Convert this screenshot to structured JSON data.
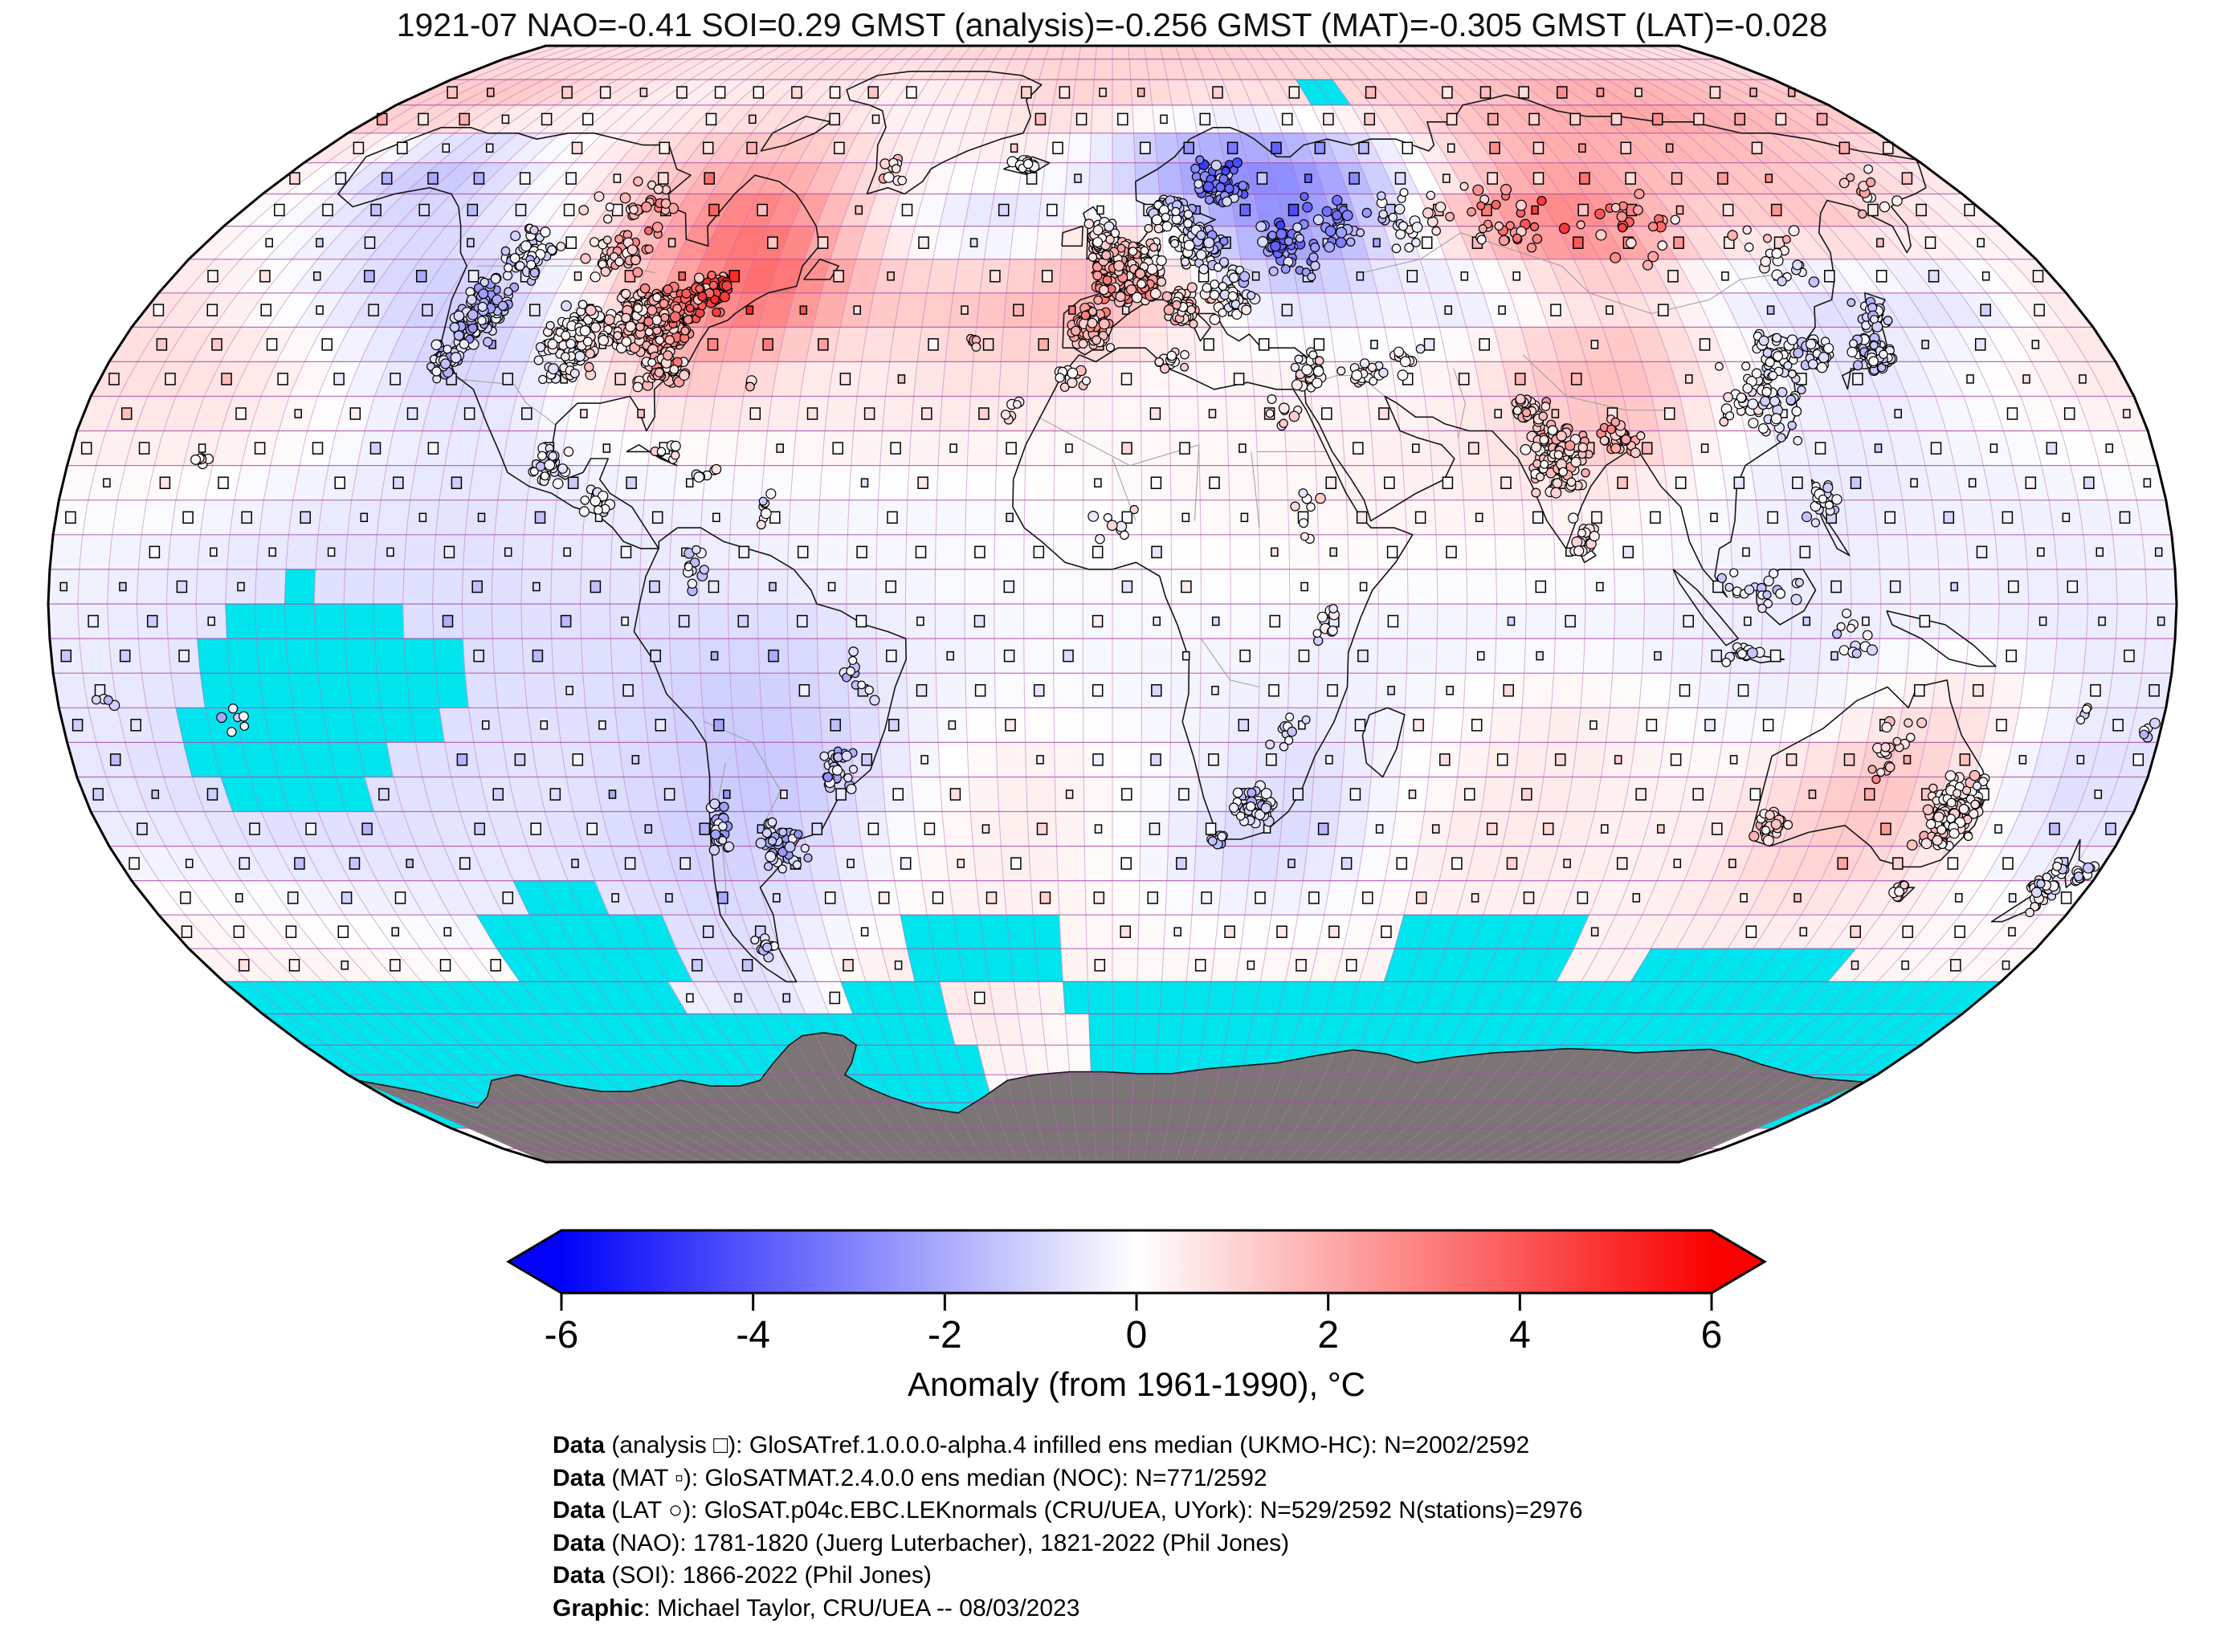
{
  "title": "1921-07 NAO=-0.41 SOI=0.29 GMST (analysis)=-0.256 GMST (MAT)=-0.305 GMST (LAT)=-0.028",
  "header_values": {
    "period": "1921-07",
    "NAO": -0.41,
    "SOI": 0.29,
    "GMST_analysis": -0.256,
    "GMST_MAT": -0.305,
    "GMST_LAT": -0.028
  },
  "map": {
    "colors": {
      "sea_ice": "#00e4ee",
      "antarctica": "#7b7575",
      "grid_meridian": "rgba(192,112,192,0.55)",
      "grid_parallel": "rgba(168,76,168,0.8)",
      "coast": "#141414",
      "country_border": "#9a9a9a",
      "outline": "#000000",
      "background": "#ffffff"
    },
    "legend_markers": {
      "analysis": "□",
      "mat": "▫",
      "lat_station": "○"
    }
  },
  "colorbar": {
    "label": "Anomaly (from 1961-1990), °C",
    "ticks": [
      -6,
      -4,
      -2,
      0,
      2,
      4,
      6
    ],
    "min": -6,
    "max": 6,
    "left_color": "#0202fa",
    "mid_color": "#ffffff",
    "right_color": "#fa0202"
  },
  "captions": [
    {
      "bold": "Data",
      "rest": " (analysis □): GloSATref.1.0.0.0-alpha.4 infilled ens median (UKMO-HC): N=2002/2592"
    },
    {
      "bold": "Data",
      "rest": " (MAT ▫): GloSATMAT.2.4.0.0 ens median (NOC): N=771/2592"
    },
    {
      "bold": "Data",
      "rest": " (LAT ○): GloSAT.p04c.EBC.LEKnormals (CRU/UEA, UYork): N=529/2592 N(stations)=2976"
    },
    {
      "bold": "Data",
      "rest": " (NAO): 1781-1820 (Juerg Luterbacher), 1821-2022 (Phil Jones)"
    },
    {
      "bold": "Data",
      "rest": " (SOI): 1866-2022 (Phil Jones)"
    },
    {
      "bold": "Graphic",
      "rest": ": Michael Taylor, CRU/UEA -- 08/03/2023"
    }
  ],
  "chart_data": {
    "type": "heatmap",
    "projection": "robinson",
    "cell_deg": 5,
    "field_deg": 10,
    "units": "°C (anomaly from 1961-1990)",
    "lon_centers": [
      -175,
      -165,
      -155,
      -145,
      -135,
      -125,
      -115,
      -105,
      -95,
      -85,
      -75,
      -65,
      -55,
      -45,
      -35,
      -25,
      -15,
      -5,
      5,
      15,
      25,
      35,
      45,
      55,
      65,
      75,
      85,
      95,
      105,
      115,
      125,
      135,
      145,
      155,
      165,
      175
    ],
    "lat_centers": [
      85,
      75,
      65,
      55,
      45,
      35,
      25,
      15,
      5,
      -5,
      -15,
      -25,
      -35,
      -45,
      -55,
      -65,
      -75,
      -85
    ],
    "anomaly_c": [
      [
        0.7,
        0.7,
        0.7,
        0.7,
        0.7,
        0.7,
        0.7,
        0.7,
        0.8,
        0.8,
        0.8,
        0.8,
        0.8,
        0.9,
        0.9,
        1.0,
        1.0,
        1.0,
        1.0,
        1.1,
        1.1,
        1.1,
        1.0,
        1.0,
        0.9,
        0.9,
        0.8,
        0.8,
        0.8,
        0.8,
        0.8,
        0.8,
        0.8,
        0.7,
        0.7,
        0.7
      ],
      [
        1.3,
        1.5,
        1.4,
        1.1,
        0.8,
        0.5,
        0.3,
        0.3,
        0.4,
        0.5,
        0.5,
        0.4,
        0.2,
        0.2,
        0.3,
        0.6,
        0.9,
        1.0,
        0.9,
        0.7,
        0.5,
        0.5,
        0.7,
        0.8,
        1.0,
        1.1,
        1.3,
        1.5,
        1.8,
        2.0,
        2.2,
        2.2,
        2.0,
        1.8,
        1.6,
        1.4
      ],
      [
        0.3,
        -0.5,
        -1.3,
        -1.5,
        -0.9,
        -0.2,
        0.4,
        0.9,
        1.3,
        1.6,
        1.7,
        1.4,
        0.8,
        0.4,
        0.3,
        0.3,
        0.1,
        -0.7,
        -1.6,
        -2.3,
        -2.7,
        -2.8,
        -2.4,
        -1.6,
        -0.6,
        0.5,
        1.3,
        1.9,
        2.0,
        1.8,
        1.6,
        1.5,
        1.4,
        1.2,
        1.0,
        0.7
      ],
      [
        0.1,
        -0.2,
        -0.5,
        -0.8,
        -0.9,
        -0.6,
        -0.2,
        0.6,
        1.6,
        2.6,
        3.4,
        2.9,
        1.5,
        0.3,
        -0.5,
        -0.9,
        -0.6,
        0.2,
        0.3,
        -0.7,
        -1.9,
        -2.6,
        -2.0,
        -0.8,
        0.7,
        2.0,
        2.9,
        3.1,
        2.4,
        1.4,
        0.9,
        1.1,
        1.3,
        0.9,
        0.5,
        0.2
      ],
      [
        0.6,
        0.3,
        -0.1,
        -0.6,
        -1.0,
        -1.2,
        -1.0,
        -0.4,
        0.6,
        1.7,
        2.9,
        3.7,
        2.6,
        1.6,
        1.4,
        1.5,
        1.8,
        2.0,
        1.7,
        0.7,
        -0.4,
        -0.9,
        -0.6,
        -0.3,
        -0.7,
        -0.4,
        0.2,
        0.6,
        0.4,
        -0.4,
        -0.6,
        -0.8,
        -0.6,
        -0.8,
        -0.4,
        0.4
      ],
      [
        0.8,
        0.8,
        0.6,
        0.3,
        -0.2,
        -0.8,
        -1.1,
        -0.7,
        0.3,
        1.1,
        1.7,
        1.2,
        0.6,
        0.4,
        0.6,
        0.8,
        0.8,
        0.5,
        0.2,
        0.2,
        0.3,
        0.2,
        0.1,
        0.1,
        0.4,
        1.2,
        1.6,
        1.5,
        0.7,
        0.1,
        -0.4,
        -0.6,
        -0.3,
        0.0,
        0.3,
        0.6
      ],
      [
        0.4,
        0.5,
        0.5,
        0.3,
        0.0,
        -0.3,
        -0.5,
        -0.5,
        -0.2,
        0.1,
        0.3,
        0.3,
        0.3,
        0.4,
        0.4,
        0.4,
        0.3,
        0.2,
        0.2,
        0.2,
        0.2,
        0.3,
        0.3,
        0.4,
        0.6,
        1.0,
        1.4,
        1.1,
        0.2,
        -0.3,
        -0.4,
        -0.4,
        -0.2,
        -0.1,
        0.1,
        0.2
      ],
      [
        0.0,
        0.0,
        -0.1,
        -0.3,
        -0.4,
        -0.5,
        -0.6,
        -0.6,
        -0.5,
        -0.4,
        -0.3,
        -0.3,
        -0.2,
        -0.2,
        -0.2,
        -0.2,
        -0.1,
        0.0,
        0.1,
        0.2,
        0.2,
        0.2,
        0.3,
        0.3,
        0.3,
        0.4,
        0.3,
        0.1,
        -0.2,
        -0.4,
        -0.5,
        -0.4,
        -0.3,
        -0.3,
        -0.3,
        -0.2
      ],
      [
        -0.3,
        -0.4,
        -0.5,
        -0.6,
        -0.7,
        -0.7,
        -0.7,
        -0.7,
        -0.6,
        -0.6,
        -0.5,
        -0.4,
        -0.3,
        -0.2,
        -0.2,
        -0.1,
        -0.1,
        -0.1,
        -0.1,
        0.0,
        0.0,
        0.1,
        0.0,
        0.0,
        0.0,
        0.0,
        -0.1,
        -0.2,
        -0.3,
        -0.4,
        -0.4,
        -0.3,
        -0.3,
        -0.4,
        -0.4,
        -0.3
      ],
      [
        -0.4,
        -0.5,
        -0.6,
        -0.7,
        -0.8,
        -0.8,
        -0.8,
        -0.8,
        -0.7,
        -0.7,
        -0.8,
        -0.9,
        -0.9,
        -0.7,
        -0.4,
        -0.3,
        -0.2,
        -0.2,
        -0.2,
        -0.2,
        -0.2,
        -0.3,
        -0.3,
        -0.3,
        -0.3,
        -0.3,
        -0.3,
        -0.4,
        -0.4,
        -0.5,
        -0.4,
        -0.3,
        -0.3,
        -0.4,
        -0.5,
        -0.4
      ],
      [
        -0.5,
        -0.6,
        -0.7,
        -0.8,
        -0.8,
        -0.8,
        -0.8,
        -0.7,
        -0.7,
        -0.8,
        -1.0,
        -1.2,
        -1.1,
        -0.8,
        -0.4,
        -0.2,
        0.0,
        -0.1,
        -0.2,
        -0.3,
        -0.4,
        -0.4,
        -0.3,
        -0.1,
        0.2,
        0.4,
        0.3,
        0.0,
        -0.3,
        -0.3,
        -0.1,
        0.4,
        0.8,
        0.3,
        -0.3,
        -0.5
      ],
      [
        -0.6,
        -0.7,
        -0.8,
        -0.8,
        -0.8,
        -0.7,
        -0.7,
        -0.6,
        -0.6,
        -0.8,
        -1.0,
        -1.3,
        -1.3,
        -0.9,
        -0.3,
        0.2,
        0.4,
        0.3,
        0.0,
        -0.3,
        -0.6,
        -0.8,
        -0.4,
        0.1,
        0.4,
        0.5,
        0.4,
        0.3,
        0.3,
        0.6,
        1.1,
        1.5,
        0.9,
        -0.2,
        -0.8,
        -0.7
      ],
      [
        -0.4,
        -0.5,
        -0.6,
        -0.7,
        -0.7,
        -0.7,
        -0.6,
        -0.6,
        -0.7,
        -0.9,
        -1.1,
        -1.1,
        -0.9,
        -0.4,
        0.1,
        0.3,
        0.4,
        0.2,
        -0.2,
        -0.6,
        -1.0,
        -0.8,
        -0.3,
        0.3,
        0.5,
        0.5,
        0.4,
        0.3,
        0.4,
        0.8,
        1.2,
        1.2,
        0.7,
        0.2,
        -0.5,
        -0.5
      ],
      [
        0.2,
        0.1,
        0.0,
        -0.1,
        -0.2,
        -0.3,
        -0.4,
        -0.5,
        -0.6,
        -0.7,
        -0.8,
        -0.7,
        -0.5,
        -0.1,
        0.2,
        0.3,
        0.3,
        0.2,
        0.1,
        0.0,
        -0.1,
        -0.1,
        0.0,
        0.2,
        0.3,
        0.3,
        0.3,
        0.3,
        0.4,
        0.5,
        0.5,
        0.4,
        0.3,
        0.2,
        0.1,
        0.2
      ],
      [
        0.3,
        0.3,
        0.3,
        0.3,
        0.2,
        0.2,
        0.2,
        0.2,
        -0.5,
        -0.6,
        -0.7,
        -0.5,
        0.3,
        0.5,
        0.6,
        0.5,
        0.3,
        0.3,
        0.2,
        0.2,
        0.2,
        0.3,
        0.3,
        0.3,
        0.3,
        0.3,
        0.3,
        0.3,
        0.3,
        0.3,
        0.3,
        0.3,
        0.3,
        0.2,
        0.2,
        0.2
      ],
      [
        0.2,
        0.2,
        0.2,
        0.2,
        0.2,
        0.2,
        0.2,
        0.2,
        0.2,
        0.2,
        -0.4,
        -0.4,
        0.2,
        0.2,
        0.3,
        0.4,
        0.2,
        0.1,
        0.2,
        0.2,
        0.2,
        0.2,
        0.2,
        0.2,
        0.2,
        0.2,
        0.2,
        0.2,
        0.2,
        0.2,
        0.2,
        0.2,
        0.2,
        0.2,
        0.2,
        0.2
      ],
      [
        0.1,
        0.1,
        0.1,
        0.1,
        0.1,
        0.1,
        0.1,
        0.1,
        0.1,
        0.1,
        0.1,
        0.1,
        0.1,
        0.1,
        0.1,
        0.1,
        0.1,
        0.1,
        0.1,
        0.1,
        0.1,
        0.1,
        0.1,
        0.1,
        0.1,
        0.1,
        0.1,
        0.1,
        0.1,
        0.1,
        0.1,
        0.1,
        0.1,
        0.1,
        0.1,
        0.1
      ],
      [
        0.0,
        0.0,
        0.0,
        0.0,
        0.0,
        0.0,
        0.0,
        0.0,
        0.0,
        0.0,
        0.0,
        0.0,
        0.0,
        0.0,
        0.0,
        0.0,
        0.0,
        0.0,
        0.0,
        0.0,
        0.0,
        0.0,
        0.0,
        0.0,
        0.0,
        0.0,
        0.0,
        0.0,
        0.0,
        0.0,
        0.0,
        0.0,
        0.0,
        0.0,
        0.0,
        0.0
      ]
    ],
    "sea_ice_missing_boxes": [
      [
        -180,
        180,
        -78,
        -55
      ],
      [
        -120,
        -85,
        -55,
        -45
      ],
      [
        -110,
        -95,
        -45,
        -40
      ],
      [
        -40,
        -10,
        -55,
        -45
      ],
      [
        55,
        90,
        -55,
        -45
      ],
      [
        105,
        145,
        -55,
        -50
      ],
      [
        50,
        60,
        75,
        80
      ],
      [
        -140,
        -135,
        0,
        5
      ],
      [
        -150,
        -120,
        -5,
        0
      ],
      [
        -155,
        -110,
        -15,
        -5
      ],
      [
        -160,
        -115,
        -20,
        -15
      ],
      [
        -160,
        -125,
        -25,
        -20
      ],
      [
        -155,
        -130,
        -30,
        -25
      ]
    ],
    "sea_ice_gap_boxes": [
      [
        -90,
        -55,
        -60,
        -55
      ],
      [
        -35,
        -10,
        -62.5,
        -55
      ],
      [
        -30,
        -5,
        -72.5,
        -62.5
      ]
    ]
  }
}
